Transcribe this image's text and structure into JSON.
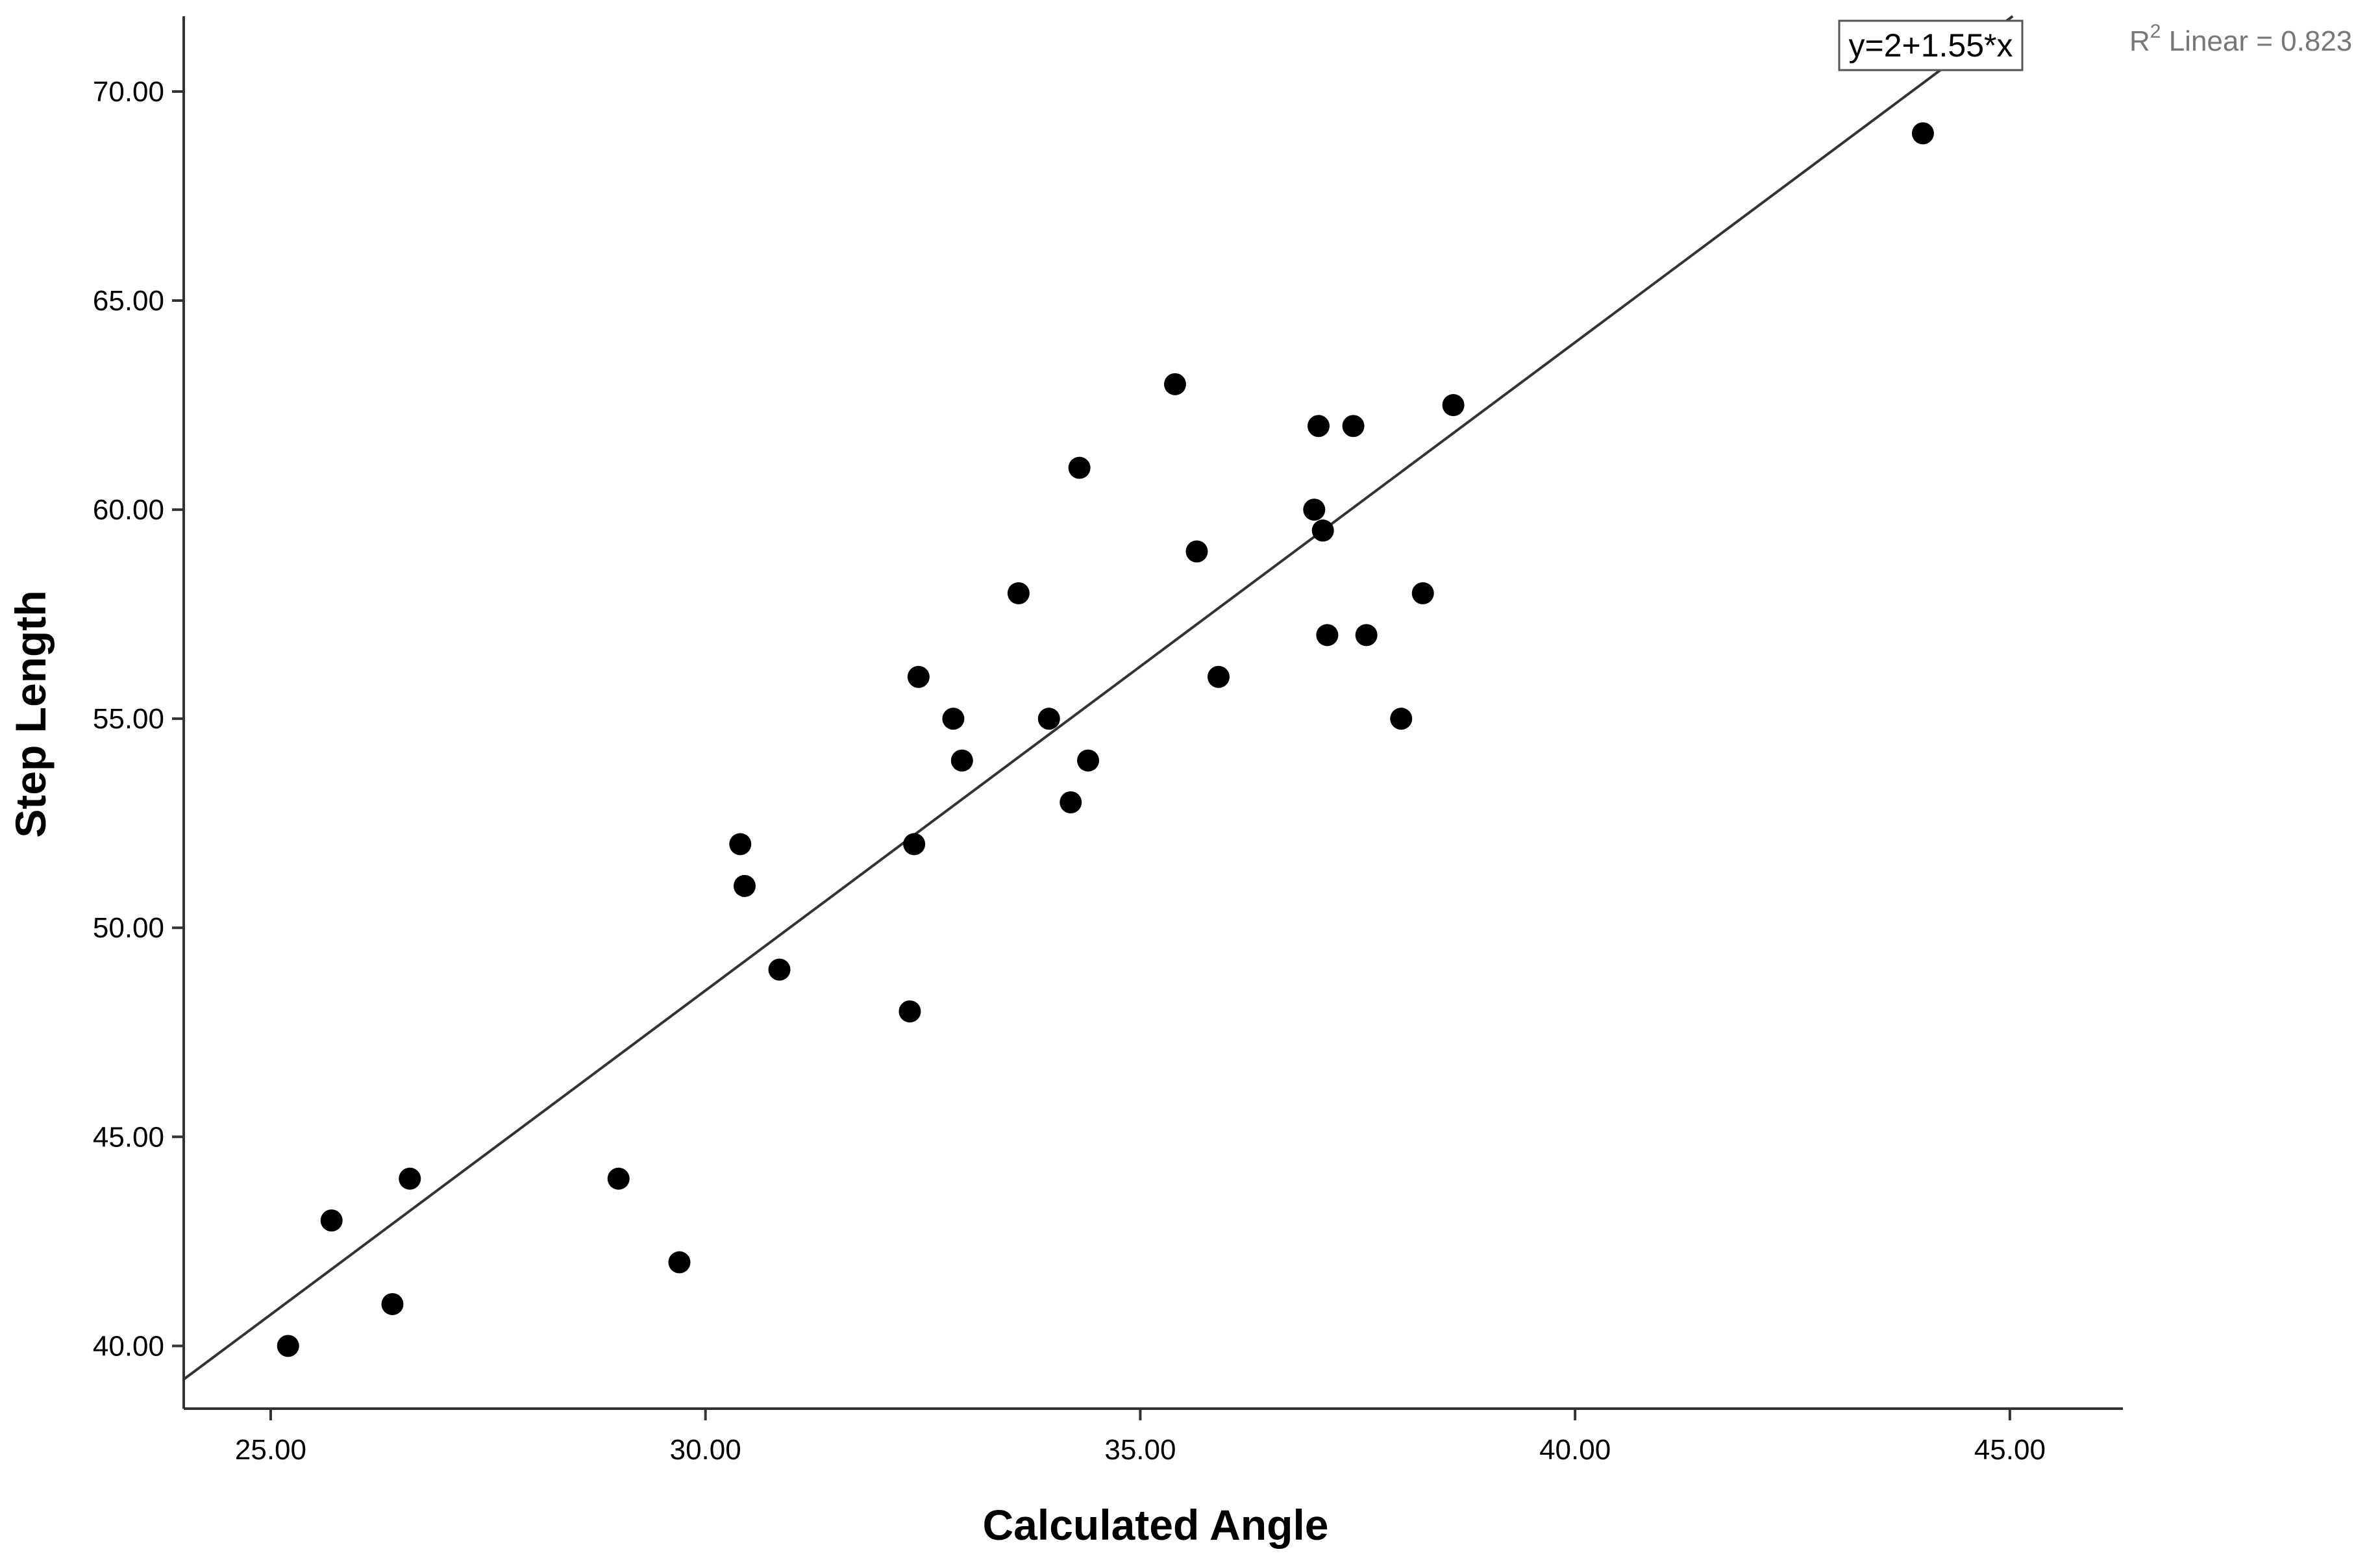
{
  "chart_data": {
    "type": "scatter",
    "xlabel": "Calculated Angle",
    "ylabel": "Step Length",
    "xlim": [
      24,
      46.3
    ],
    "ylim": [
      38.5,
      71.8
    ],
    "xticks": [
      "25.00",
      "30.00",
      "35.00",
      "40.00",
      "45.00"
    ],
    "xtick_values": [
      25,
      30,
      35,
      40,
      45
    ],
    "yticks": [
      "40.00",
      "45.00",
      "50.00",
      "55.00",
      "60.00",
      "65.00",
      "70.00"
    ],
    "ytick_values": [
      40,
      45,
      50,
      55,
      60,
      65,
      70
    ],
    "grid": false,
    "points": [
      {
        "x": 25.2,
        "y": 40
      },
      {
        "x": 25.7,
        "y": 43
      },
      {
        "x": 26.4,
        "y": 41
      },
      {
        "x": 26.6,
        "y": 44
      },
      {
        "x": 29.0,
        "y": 44
      },
      {
        "x": 29.7,
        "y": 42
      },
      {
        "x": 30.4,
        "y": 52
      },
      {
        "x": 30.45,
        "y": 51
      },
      {
        "x": 30.85,
        "y": 49
      },
      {
        "x": 32.35,
        "y": 48
      },
      {
        "x": 32.4,
        "y": 52
      },
      {
        "x": 32.45,
        "y": 56
      },
      {
        "x": 32.85,
        "y": 55
      },
      {
        "x": 32.95,
        "y": 54
      },
      {
        "x": 33.6,
        "y": 58
      },
      {
        "x": 33.95,
        "y": 55
      },
      {
        "x": 34.2,
        "y": 53
      },
      {
        "x": 34.3,
        "y": 61
      },
      {
        "x": 34.4,
        "y": 54
      },
      {
        "x": 35.4,
        "y": 63
      },
      {
        "x": 35.65,
        "y": 59
      },
      {
        "x": 35.9,
        "y": 56
      },
      {
        "x": 37.0,
        "y": 60
      },
      {
        "x": 37.05,
        "y": 62
      },
      {
        "x": 37.1,
        "y": 59.5
      },
      {
        "x": 37.15,
        "y": 57
      },
      {
        "x": 37.45,
        "y": 62
      },
      {
        "x": 37.6,
        "y": 57
      },
      {
        "x": 38.0,
        "y": 55
      },
      {
        "x": 38.25,
        "y": 58
      },
      {
        "x": 38.6,
        "y": 62.5
      },
      {
        "x": 44.0,
        "y": 69
      }
    ],
    "fit_line": {
      "intercept": 2,
      "slope": 1.55,
      "x_range": [
        24,
        46.3
      ]
    },
    "fit_equation": "y=2+1.55*x",
    "r2_label": "R² Linear = 0.823"
  }
}
